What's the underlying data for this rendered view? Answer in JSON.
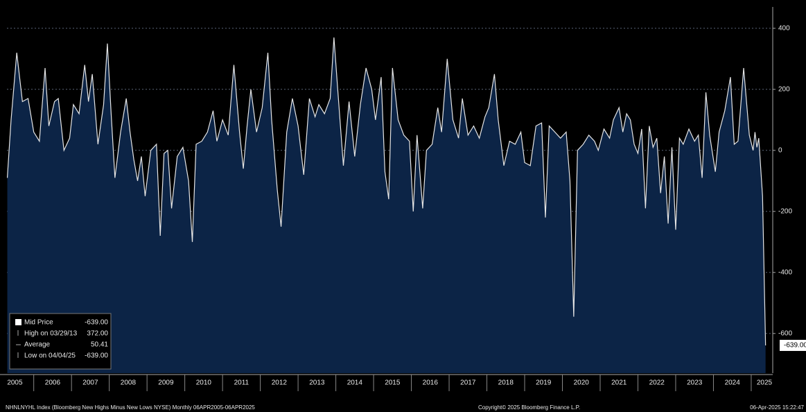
{
  "chart_data": {
    "type": "area",
    "xlim": [
      2005.29,
      2025.57
    ],
    "ylim": [
      -730,
      470
    ],
    "yticks": [
      400,
      200,
      0,
      -200,
      -400,
      -600
    ],
    "xticks": [
      2005,
      2006,
      2007,
      2008,
      2009,
      2010,
      2011,
      2012,
      2013,
      2014,
      2015,
      2016,
      2017,
      2018,
      2019,
      2020,
      2021,
      2022,
      2023,
      2024,
      2025
    ],
    "grid": true,
    "fill_color": "#0c2446",
    "x": [
      2005.3,
      2005.4,
      2005.55,
      2005.7,
      2005.85,
      2006.0,
      2006.15,
      2006.3,
      2006.4,
      2006.55,
      2006.65,
      2006.8,
      2006.95,
      2007.05,
      2007.2,
      2007.35,
      2007.45,
      2007.55,
      2007.7,
      2007.85,
      2007.95,
      2008.05,
      2008.15,
      2008.3,
      2008.45,
      2008.55,
      2008.65,
      2008.75,
      2008.85,
      2008.95,
      2009.1,
      2009.25,
      2009.35,
      2009.45,
      2009.55,
      2009.65,
      2009.8,
      2009.95,
      2010.1,
      2010.2,
      2010.3,
      2010.45,
      2010.6,
      2010.75,
      2010.85,
      2011.0,
      2011.15,
      2011.3,
      2011.45,
      2011.55,
      2011.65,
      2011.75,
      2011.9,
      2012.05,
      2012.2,
      2012.3,
      2012.45,
      2012.55,
      2012.7,
      2012.85,
      2013.0,
      2013.15,
      2013.3,
      2013.45,
      2013.55,
      2013.7,
      2013.85,
      2013.95,
      2014.05,
      2014.2,
      2014.35,
      2014.5,
      2014.65,
      2014.8,
      2014.95,
      2015.05,
      2015.2,
      2015.3,
      2015.4,
      2015.5,
      2015.65,
      2015.8,
      2015.95,
      2016.05,
      2016.15,
      2016.3,
      2016.4,
      2016.55,
      2016.7,
      2016.8,
      2016.95,
      2017.1,
      2017.25,
      2017.35,
      2017.5,
      2017.65,
      2017.8,
      2017.95,
      2018.05,
      2018.2,
      2018.3,
      2018.45,
      2018.6,
      2018.75,
      2018.9,
      2019.0,
      2019.15,
      2019.3,
      2019.45,
      2019.55,
      2019.65,
      2019.8,
      2019.95,
      2020.1,
      2020.2,
      2020.3,
      2020.4,
      2020.55,
      2020.7,
      2020.85,
      2020.95,
      2021.1,
      2021.25,
      2021.35,
      2021.5,
      2021.6,
      2021.7,
      2021.8,
      2021.9,
      2022.0,
      2022.1,
      2022.2,
      2022.3,
      2022.4,
      2022.5,
      2022.6,
      2022.7,
      2022.8,
      2022.9,
      2023.0,
      2023.1,
      2023.2,
      2023.35,
      2023.5,
      2023.6,
      2023.7,
      2023.8,
      2023.9,
      2024.05,
      2024.15,
      2024.3,
      2024.45,
      2024.55,
      2024.65,
      2024.8,
      2024.95,
      2025.05,
      2025.1,
      2025.15,
      2025.2,
      2025.3,
      2025.38
    ],
    "series": [
      {
        "name": "Mid Price",
        "color": "#e6e6e6",
        "values": [
          -90,
          100,
          320,
          160,
          170,
          60,
          30,
          270,
          80,
          160,
          170,
          0,
          40,
          150,
          120,
          280,
          160,
          250,
          20,
          150,
          350,
          120,
          -90,
          60,
          170,
          60,
          -30,
          -100,
          -20,
          -150,
          0,
          20,
          -280,
          -10,
          0,
          -190,
          -20,
          10,
          -100,
          -300,
          20,
          30,
          60,
          130,
          30,
          100,
          50,
          280,
          60,
          -60,
          80,
          200,
          60,
          140,
          320,
          100,
          -130,
          -250,
          60,
          170,
          80,
          -80,
          170,
          110,
          150,
          120,
          170,
          370,
          200,
          -50,
          160,
          -20,
          150,
          270,
          200,
          100,
          240,
          -70,
          -160,
          270,
          100,
          50,
          30,
          -200,
          50,
          -190,
          0,
          20,
          140,
          60,
          300,
          100,
          40,
          170,
          50,
          80,
          40,
          110,
          140,
          250,
          100,
          -50,
          30,
          20,
          60,
          -40,
          -50,
          80,
          90,
          -220,
          80,
          60,
          40,
          60,
          -100,
          -545,
          0,
          20,
          50,
          30,
          0,
          70,
          40,
          100,
          140,
          60,
          120,
          100,
          20,
          -10,
          70,
          -190,
          80,
          10,
          40,
          -140,
          -20,
          -240,
          10,
          -260,
          40,
          20,
          70,
          30,
          50,
          -90,
          190,
          50,
          -70,
          60,
          130,
          240,
          20,
          30,
          270,
          50,
          0,
          60,
          10,
          40,
          -150,
          -639
        ]
      }
    ],
    "last_value_label": "-639.00",
    "legend": {
      "mid_value": "-639.00",
      "stats": [
        {
          "label": "High on 03/29/13",
          "value": "372.00"
        },
        {
          "label": "Average",
          "value": "50.41"
        },
        {
          "label": "Low on 04/04/25",
          "value": "-639.00"
        }
      ]
    },
    "footer": {
      "left": "NHNLNYHL Index (Bloomberg New Highs Minus New Lows NYSE) Monthly 06APR2005-06APR2025",
      "center": "Copyright© 2025 Bloomberg Finance L.P.",
      "right": "06-Apr-2025 15:22:47"
    }
  }
}
